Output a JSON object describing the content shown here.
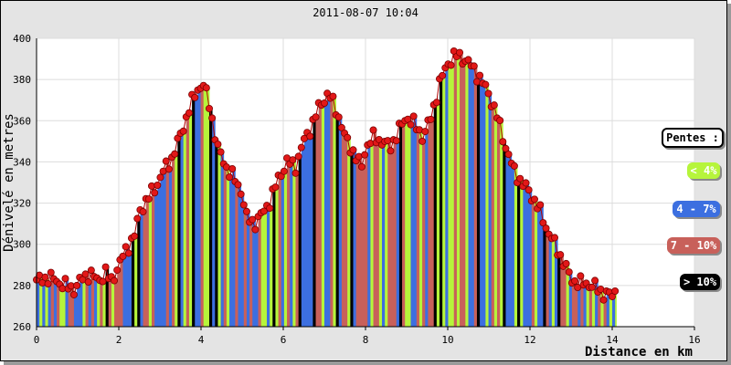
{
  "title": "2011-08-07 10:04",
  "legend": {
    "title": "Pentes :",
    "items": [
      {
        "label": "< 4%",
        "color": "#b6f53b",
        "text_color": "#ffffff"
      },
      {
        "label": "4 - 7%",
        "color": "#3c6fe0",
        "text_color": "#ffffff"
      },
      {
        "label": "7 - 10%",
        "color": "#c8605a",
        "text_color": "#ffffff"
      },
      {
        "label": "> 10%",
        "color": "#000000",
        "text_color": "#ffffff"
      }
    ]
  },
  "chart_data": {
    "type": "area",
    "title": "2011-08-07 10:04",
    "xlabel": "Distance en km",
    "ylabel": "Dénivelé en metres",
    "xlim": [
      0,
      16
    ],
    "ylim": [
      260,
      400
    ],
    "x_ticks": [
      0,
      2,
      4,
      6,
      8,
      10,
      12,
      14,
      16
    ],
    "y_ticks": [
      260,
      280,
      300,
      320,
      340,
      360,
      380,
      400
    ],
    "grid": true,
    "legend_position": "right",
    "series": [
      {
        "x": [
          0,
          0.3,
          0.6,
          0.9,
          1.1,
          1.3,
          1.5,
          1.7,
          1.8,
          2.0,
          2.2,
          2.4,
          2.5,
          2.7,
          2.9,
          3.1,
          3.3,
          3.5,
          3.7,
          3.9,
          4.05,
          4.2,
          4.4,
          4.6,
          4.8,
          5.0,
          5.1,
          5.3,
          5.5,
          5.7,
          5.9,
          6.1,
          6.3,
          6.5,
          6.7,
          6.9,
          7.1,
          7.3,
          7.5,
          7.7,
          7.9,
          8.0,
          8.2,
          8.4,
          8.6,
          8.8,
          9.0,
          9.2,
          9.4,
          9.6,
          9.8,
          10.0,
          10.2,
          10.4,
          10.6,
          10.8,
          11.0,
          11.2,
          11.4,
          11.6,
          11.8,
          12.0,
          12.2,
          12.4,
          12.6,
          12.8,
          13.0,
          13.2,
          13.4,
          13.6,
          13.8,
          14.0,
          14.1
        ],
        "y": [
          282,
          284,
          281,
          278,
          283,
          286,
          282,
          287,
          281,
          290,
          298,
          305,
          316,
          322,
          328,
          336,
          342,
          353,
          365,
          375,
          378,
          368,
          347,
          338,
          332,
          325,
          313,
          310,
          315,
          322,
          333,
          340,
          338,
          350,
          358,
          368,
          373,
          365,
          352,
          345,
          337,
          347,
          352,
          350,
          347,
          355,
          362,
          358,
          352,
          362,
          378,
          388,
          392,
          390,
          386,
          380,
          373,
          362,
          348,
          336,
          330,
          325,
          318,
          308,
          300,
          292,
          283,
          281,
          281,
          279,
          276,
          275,
          278
        ]
      }
    ],
    "slope_classes": [
      "< 4%",
      "4 - 7%",
      "7 - 10%",
      "> 10%"
    ]
  }
}
